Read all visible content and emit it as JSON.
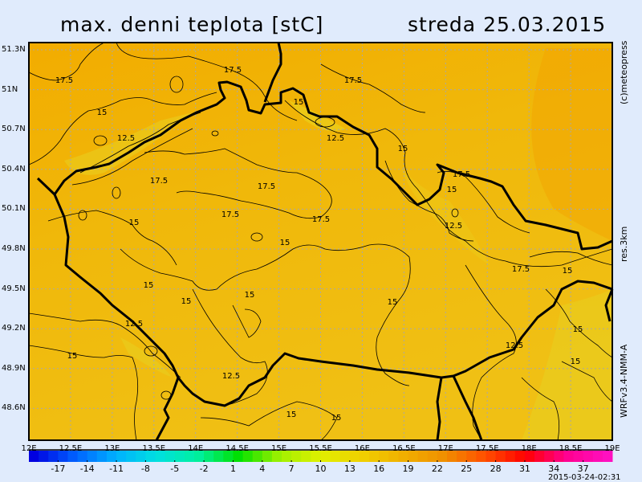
{
  "header": {
    "title": "max. denni teplota [stC]",
    "date": "streda 25.03.2015"
  },
  "side_labels": {
    "copyright": "(c)meteopress",
    "resolution": "res.3km",
    "model": "WRFv3.4-NMM-A"
  },
  "timestamp": "2015-03-24-02:31",
  "map": {
    "lat_labels": [
      "51.3N",
      "51N",
      "50.7N",
      "50.4N",
      "50.1N",
      "49.8N",
      "49.5N",
      "49.2N",
      "48.9N",
      "48.6N"
    ],
    "lon_labels": [
      "12E",
      "12.5E",
      "13E",
      "13.5E",
      "14E",
      "14.5E",
      "15E",
      "15.5E",
      "16E",
      "16.5E",
      "17E",
      "17.5E",
      "18E",
      "18.5E",
      "19E"
    ],
    "contour_labels": [
      "17.5",
      "17.5",
      "17.5",
      "15",
      "12.5",
      "15",
      "12.5",
      "15",
      "17.5",
      "17.5",
      "17.5",
      "15",
      "17.5",
      "17.5",
      "15",
      "12.5",
      "15",
      "17.5",
      "15",
      "15",
      "15",
      "15",
      "15",
      "12.5",
      "15",
      "15",
      "12.5",
      "15",
      "12.5",
      "15",
      "15"
    ],
    "colors": {
      "north": "#f2a800",
      "south": "#f0c010",
      "border": "#000000",
      "grid": "#b0b0b0"
    }
  },
  "colorbar": {
    "labels": [
      "-17",
      "-14",
      "-11",
      "-8",
      "-5",
      "-2",
      "1",
      "4",
      "7",
      "10",
      "13",
      "16",
      "19",
      "22",
      "25",
      "28",
      "31",
      "34",
      "37"
    ],
    "range": [
      -20,
      40
    ],
    "colors": [
      "#0000e0",
      "#0060ff",
      "#00b0ff",
      "#00e0e0",
      "#00f0a0",
      "#00e000",
      "#a0f000",
      "#e0f000",
      "#f0d000",
      "#f0b000",
      "#f09000",
      "#ff5000",
      "#ff0000",
      "#ff0090",
      "#ff10c0"
    ]
  }
}
